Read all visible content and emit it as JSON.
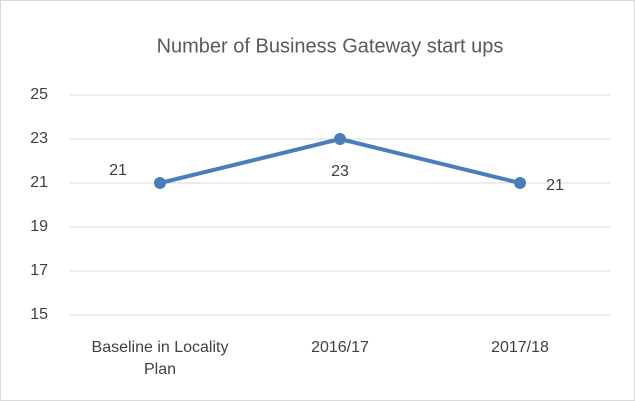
{
  "chart_data": {
    "type": "line",
    "title": "Number of Business Gateway start ups",
    "categories": [
      "Baseline in Locality Plan",
      "2016/17",
      "2017/18"
    ],
    "values": [
      21,
      23,
      21
    ],
    "color": "#4a7ebb",
    "ylim": [
      15,
      25
    ],
    "yticks": [
      15,
      17,
      19,
      21,
      23,
      25
    ],
    "grid": true
  }
}
